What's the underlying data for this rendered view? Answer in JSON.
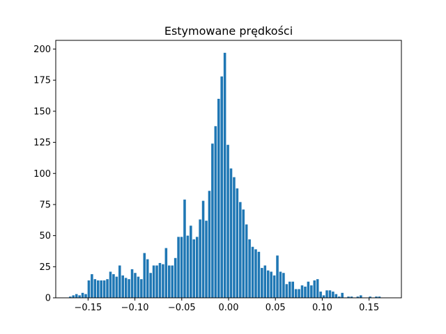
{
  "chart_data": {
    "type": "bar",
    "title": "Estymowane prędkości",
    "xlabel": "",
    "ylabel": "",
    "xlim": [
      -0.1845,
      0.1845
    ],
    "ylim": [
      0,
      207
    ],
    "grid": false,
    "bar_color": "#1f77b4",
    "x_ticks": [
      {
        "value": -0.15,
        "label": "−0.15"
      },
      {
        "value": -0.1,
        "label": "−0.10"
      },
      {
        "value": -0.05,
        "label": "−0.05"
      },
      {
        "value": 0.0,
        "label": "0.00"
      },
      {
        "value": 0.05,
        "label": "0.05"
      },
      {
        "value": 0.1,
        "label": "0.10"
      },
      {
        "value": 0.15,
        "label": "0.15"
      }
    ],
    "y_ticks": [
      {
        "value": 0,
        "label": "0"
      },
      {
        "value": 25,
        "label": "25"
      },
      {
        "value": 50,
        "label": "50"
      },
      {
        "value": 75,
        "label": "75"
      },
      {
        "value": 100,
        "label": "100"
      },
      {
        "value": 125,
        "label": "125"
      },
      {
        "value": 150,
        "label": "150"
      },
      {
        "value": 175,
        "label": "175"
      },
      {
        "value": 200,
        "label": "200"
      }
    ],
    "bin_width": 0.0033,
    "x": [
      -0.169,
      -0.1657,
      -0.1624,
      -0.1591,
      -0.1558,
      -0.1525,
      -0.1492,
      -0.1459,
      -0.1426,
      -0.1393,
      -0.136,
      -0.1327,
      -0.1294,
      -0.1261,
      -0.1228,
      -0.1195,
      -0.1162,
      -0.1129,
      -0.1096,
      -0.1063,
      -0.103,
      -0.0997,
      -0.0964,
      -0.0931,
      -0.0898,
      -0.0865,
      -0.0832,
      -0.0799,
      -0.0766,
      -0.0733,
      -0.07,
      -0.0667,
      -0.0634,
      -0.0601,
      -0.0568,
      -0.0535,
      -0.0502,
      -0.0469,
      -0.0436,
      -0.0403,
      -0.037,
      -0.0337,
      -0.0304,
      -0.0271,
      -0.0238,
      -0.0205,
      -0.0172,
      -0.0139,
      -0.0106,
      -0.0073,
      -0.004,
      -0.0007,
      0.0026,
      0.0059,
      0.0092,
      0.0125,
      0.0158,
      0.0191,
      0.0224,
      0.0257,
      0.029,
      0.0323,
      0.0356,
      0.0389,
      0.0422,
      0.0455,
      0.0488,
      0.0521,
      0.0554,
      0.0587,
      0.062,
      0.0653,
      0.0686,
      0.0719,
      0.0752,
      0.0785,
      0.0818,
      0.0851,
      0.0884,
      0.0917,
      0.095,
      0.0983,
      0.1016,
      0.1049,
      0.1082,
      0.1115,
      0.1148,
      0.1181,
      0.1214,
      0.1247,
      0.128,
      0.1313,
      0.1346,
      0.1379,
      0.1412,
      0.1445,
      0.1478,
      0.1511,
      0.1544,
      0.1577,
      0.161,
      0.1643
    ],
    "values": [
      1,
      2,
      3,
      2,
      4,
      3,
      14,
      19,
      15,
      14,
      14,
      14,
      15,
      21,
      19,
      17,
      26,
      18,
      16,
      15,
      23,
      20,
      17,
      15,
      36,
      31,
      20,
      26,
      26,
      28,
      27,
      40,
      26,
      26,
      32,
      49,
      49,
      79,
      50,
      58,
      47,
      49,
      63,
      78,
      62,
      86,
      124,
      138,
      160,
      178,
      197,
      123,
      104,
      97,
      88,
      77,
      71,
      59,
      47,
      41,
      39,
      37,
      24,
      26,
      22,
      21,
      18,
      34,
      21,
      20,
      11,
      13,
      13,
      7,
      7,
      10,
      9,
      13,
      10,
      14,
      15,
      5,
      2,
      6,
      6,
      5,
      3,
      1,
      4,
      0,
      1,
      1,
      0,
      1,
      2,
      0,
      0,
      1,
      0,
      1,
      1,
      0
    ]
  }
}
